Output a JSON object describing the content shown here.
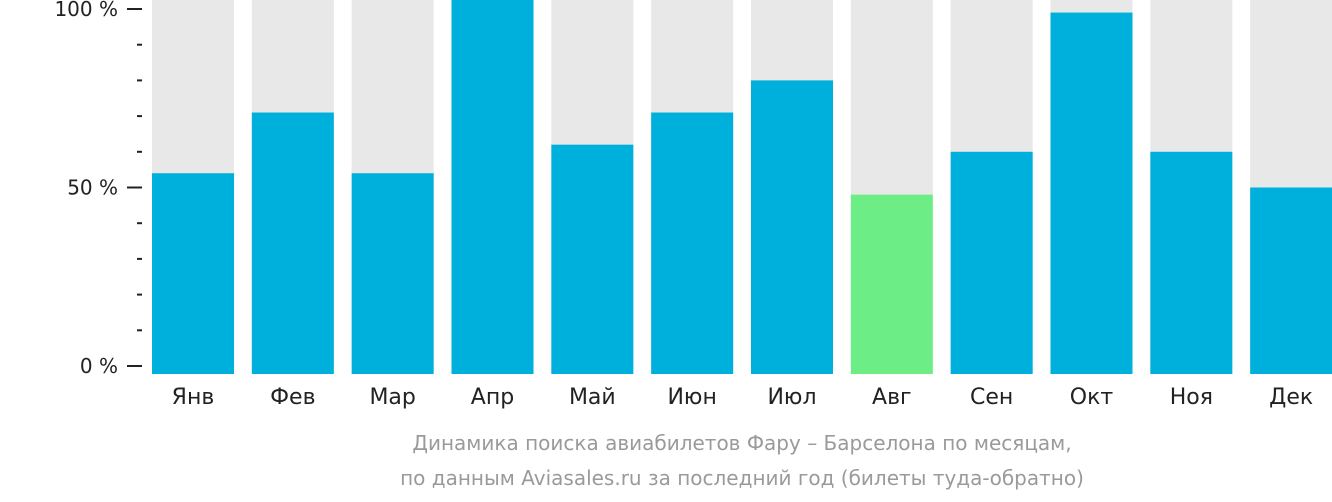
{
  "chart_data": {
    "type": "bar",
    "categories": [
      "Янв",
      "Фев",
      "Мар",
      "Апр",
      "Май",
      "Июн",
      "Июл",
      "Авг",
      "Сен",
      "Окт",
      "Ноя",
      "Дек"
    ],
    "values": [
      54,
      71,
      54,
      104,
      62,
      71,
      80,
      48,
      60,
      99,
      60,
      50
    ],
    "ylim": [
      0,
      100
    ],
    "yticks": [
      {
        "value": 0,
        "label": "0 %"
      },
      {
        "value": 50,
        "label": "50 %"
      },
      {
        "value": 100,
        "label": "100 %"
      }
    ],
    "minor_ticks": [
      10,
      20,
      30,
      40,
      60,
      70,
      80,
      90
    ],
    "highlight_index": 7,
    "grid": false,
    "colors": {
      "bar": "#00b0dc",
      "highlight": "#6ced86",
      "background_bar": "#e8e8e8"
    }
  },
  "caption": {
    "line1": "Динамика поиска авиабилетов Фару – Барселона по месяцам,",
    "line2": "по данным Aviasales.ru за последний год (билеты туда-обратно)"
  }
}
